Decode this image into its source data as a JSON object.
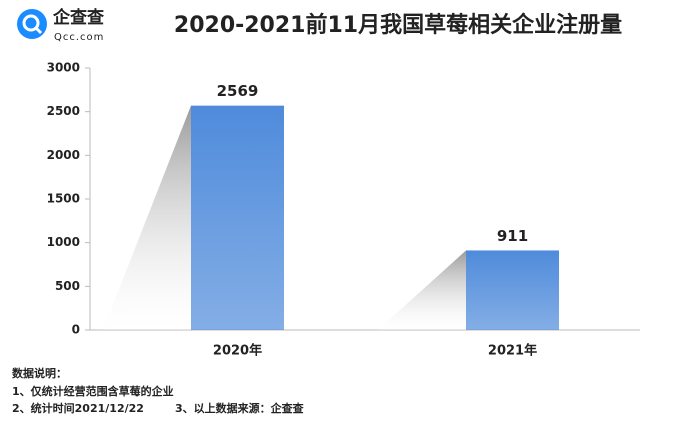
{
  "logo": {
    "name": "企查查",
    "domain": "Qcc.com"
  },
  "chart_data": {
    "type": "bar",
    "title": "2020-2021前11月我国草莓相关企业注册量",
    "categories": [
      "2020年",
      "2021年"
    ],
    "values": [
      2569,
      911
    ],
    "color": "#4f8bdb",
    "ylim": [
      0,
      3000
    ],
    "yticks": [
      0,
      500,
      1000,
      1500,
      2000,
      2500,
      3000
    ],
    "grid": false
  },
  "notes": {
    "heading": "数据说明：",
    "items": [
      "1、仅统计经营范围含草莓的企业",
      "2、统计时间2021/12/22",
      "3、以上数据来源：企查查"
    ]
  }
}
